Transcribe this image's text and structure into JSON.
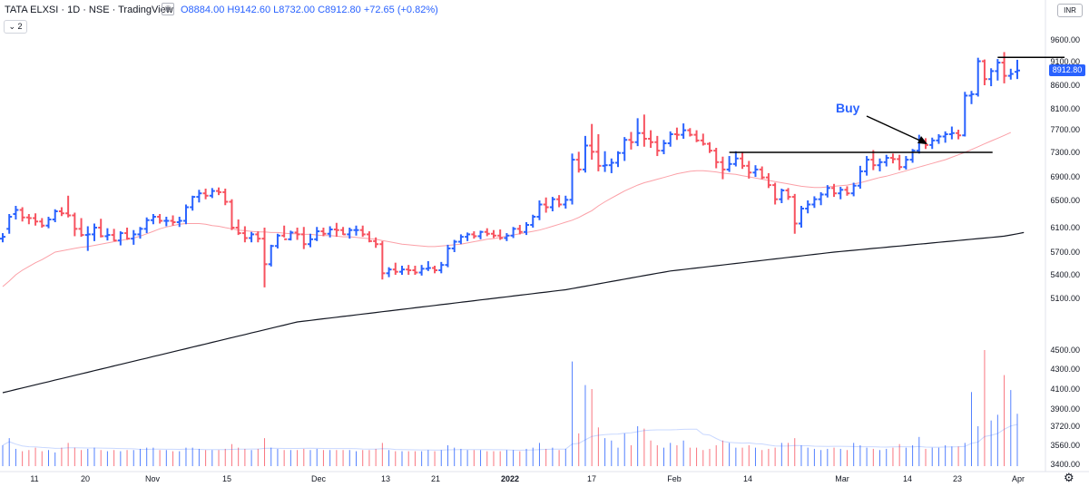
{
  "header": {
    "symbol_line": "TATA ELXSI · 1D · NSE · TradingView",
    "ohlc": "O8884.00  H9142.60  L8732.00  C8912.80  +72.65 (+0.82%)",
    "indicator_count": "2"
  },
  "currency": "INR",
  "last_price_label": "8912.80",
  "settings_icon": "gear-icon",
  "annotation": "Buy",
  "chart_data": {
    "type": "bar",
    "title": "",
    "price_axis": {
      "ticks": [
        5100,
        5400,
        5700,
        6100,
        6500,
        6900,
        7300,
        7700,
        8100,
        8600,
        9100,
        9600
      ],
      "tick_labels": [
        "5100.00",
        "5400.00",
        "5700.00",
        "6100.00",
        "6500.00",
        "6900.00",
        "7300.00",
        "7700.00",
        "8100.00",
        "8600.00",
        "9100.00",
        "9600.00"
      ]
    },
    "volume_axis": {
      "ticks": [
        3400,
        3560,
        3720,
        3900,
        4100,
        4300,
        4500
      ],
      "tick_labels": [
        "3400.00",
        "3560.00",
        "3720.00",
        "3900.00",
        "4100.00",
        "4300.00",
        "4500.00"
      ]
    },
    "x_ticks": [
      "11",
      "20",
      "Nov",
      "15",
      "Dec",
      "13",
      "21",
      "2022",
      "17",
      "Feb",
      "14",
      "Mar",
      "14",
      "23",
      "Apr"
    ],
    "colors": {
      "up": "#2962ff",
      "down": "#f7525f",
      "ma_fast": "#f7525f",
      "ma_slow": "#131722",
      "level": "#000000"
    },
    "ohlc": [
      [
        5920,
        6010,
        5860,
        5950
      ],
      [
        6080,
        6300,
        6000,
        6260
      ],
      [
        6300,
        6420,
        6220,
        6360
      ],
      [
        6360,
        6400,
        6190,
        6250
      ],
      [
        6250,
        6300,
        6150,
        6240
      ],
      [
        6240,
        6310,
        6130,
        6190
      ],
      [
        6190,
        6240,
        6100,
        6130
      ],
      [
        6130,
        6260,
        6090,
        6220
      ],
      [
        6220,
        6370,
        6180,
        6340
      ],
      [
        6340,
        6400,
        6270,
        6310
      ],
      [
        6310,
        6580,
        6250,
        6280
      ],
      [
        6280,
        6320,
        5960,
        6080
      ],
      [
        6080,
        6240,
        5950,
        5980
      ],
      [
        5980,
        6120,
        5720,
        5990
      ],
      [
        5990,
        6160,
        5880,
        6100
      ],
      [
        6100,
        6230,
        5940,
        5960
      ],
      [
        5960,
        6090,
        5890,
        5980
      ],
      [
        5980,
        6080,
        5880,
        5890
      ],
      [
        5890,
        6040,
        5810,
        6010
      ],
      [
        6010,
        6100,
        5900,
        5920
      ],
      [
        5920,
        6060,
        5820,
        5990
      ],
      [
        5990,
        6110,
        5920,
        6080
      ],
      [
        6080,
        6250,
        6010,
        6210
      ],
      [
        6210,
        6300,
        6150,
        6260
      ],
      [
        6260,
        6300,
        6160,
        6200
      ],
      [
        6200,
        6260,
        6120,
        6200
      ],
      [
        6200,
        6280,
        6130,
        6180
      ],
      [
        6180,
        6260,
        6110,
        6200
      ],
      [
        6200,
        6440,
        6150,
        6400
      ],
      [
        6400,
        6580,
        6350,
        6560
      ],
      [
        6560,
        6680,
        6470,
        6620
      ],
      [
        6620,
        6700,
        6520,
        6580
      ],
      [
        6580,
        6710,
        6540,
        6660
      ],
      [
        6660,
        6720,
        6590,
        6640
      ],
      [
        6640,
        6700,
        6430,
        6480
      ],
      [
        6480,
        6520,
        6060,
        6100
      ],
      [
        6100,
        6220,
        5980,
        6010
      ],
      [
        6010,
        6120,
        5860,
        5930
      ],
      [
        5930,
        6030,
        5860,
        5990
      ],
      [
        5990,
        6040,
        5860,
        5920
      ],
      [
        5920,
        6100,
        5240,
        5540
      ],
      [
        5540,
        5820,
        5510,
        5800
      ],
      [
        5800,
        6000,
        5760,
        5970
      ],
      [
        5970,
        6130,
        5940,
        5910
      ],
      [
        5910,
        6050,
        5890,
        6020
      ],
      [
        6020,
        6100,
        5900,
        5990
      ],
      [
        5990,
        6110,
        5750,
        5830
      ],
      [
        5830,
        6000,
        5780,
        5910
      ],
      [
        5910,
        6110,
        5880,
        6040
      ],
      [
        6040,
        6100,
        5960,
        6000
      ],
      [
        6000,
        6120,
        5940,
        6070
      ],
      [
        6070,
        6170,
        5950,
        6060
      ],
      [
        6060,
        6110,
        5980,
        5990
      ],
      [
        5990,
        6100,
        5920,
        6060
      ],
      [
        6060,
        6130,
        5970,
        6060
      ],
      [
        6060,
        6130,
        5950,
        5990
      ],
      [
        5990,
        6040,
        5860,
        5880
      ],
      [
        5880,
        5940,
        5770,
        5830
      ],
      [
        5830,
        5880,
        5340,
        5420
      ],
      [
        5420,
        5500,
        5370,
        5470
      ],
      [
        5470,
        5560,
        5400,
        5440
      ],
      [
        5440,
        5520,
        5400,
        5470
      ],
      [
        5470,
        5530,
        5400,
        5460
      ],
      [
        5460,
        5520,
        5400,
        5430
      ],
      [
        5430,
        5530,
        5390,
        5480
      ],
      [
        5480,
        5580,
        5450,
        5490
      ],
      [
        5490,
        5520,
        5420,
        5460
      ],
      [
        5460,
        5570,
        5420,
        5530
      ],
      [
        5530,
        5820,
        5500,
        5760
      ],
      [
        5760,
        5900,
        5700,
        5870
      ],
      [
        5870,
        5990,
        5830,
        5950
      ],
      [
        5950,
        6020,
        5880,
        5990
      ],
      [
        5990,
        6040,
        5920,
        5960
      ],
      [
        5960,
        6050,
        5910,
        6030
      ],
      [
        6030,
        6090,
        5960,
        6000
      ],
      [
        6000,
        6060,
        5930,
        5970
      ],
      [
        5970,
        6070,
        5900,
        5930
      ],
      [
        5930,
        6010,
        5880,
        5970
      ],
      [
        5970,
        6110,
        5930,
        6080
      ],
      [
        6080,
        6140,
        5990,
        6030
      ],
      [
        6030,
        6180,
        5980,
        6140
      ],
      [
        6140,
        6290,
        6100,
        6260
      ],
      [
        6260,
        6500,
        6210,
        6440
      ],
      [
        6440,
        6550,
        6320,
        6400
      ],
      [
        6400,
        6560,
        6340,
        6520
      ],
      [
        6520,
        6590,
        6400,
        6440
      ],
      [
        6440,
        6580,
        6380,
        6510
      ],
      [
        6510,
        7280,
        6440,
        7180
      ],
      [
        7180,
        7310,
        6970,
        7020
      ],
      [
        7020,
        7590,
        6970,
        7420
      ],
      [
        7420,
        7810,
        7180,
        7310
      ],
      [
        7310,
        7620,
        6990,
        7080
      ],
      [
        7080,
        7320,
        6980,
        7090
      ],
      [
        7090,
        7200,
        6960,
        7130
      ],
      [
        7130,
        7320,
        7060,
        7290
      ],
      [
        7290,
        7570,
        7160,
        7520
      ],
      [
        7520,
        7660,
        7350,
        7480
      ],
      [
        7480,
        7920,
        7410,
        7640
      ],
      [
        7640,
        7990,
        7400,
        7540
      ],
      [
        7540,
        7690,
        7380,
        7480
      ],
      [
        7480,
        7590,
        7240,
        7330
      ],
      [
        7330,
        7520,
        7270,
        7460
      ],
      [
        7460,
        7670,
        7400,
        7620
      ],
      [
        7620,
        7740,
        7520,
        7610
      ],
      [
        7610,
        7820,
        7540,
        7690
      ],
      [
        7690,
        7730,
        7580,
        7610
      ],
      [
        7610,
        7690,
        7480,
        7510
      ],
      [
        7510,
        7630,
        7420,
        7450
      ],
      [
        7450,
        7480,
        7290,
        7330
      ],
      [
        7330,
        7380,
        7040,
        7140
      ],
      [
        7140,
        7230,
        6860,
        7020
      ],
      [
        7020,
        7240,
        6980,
        7110
      ],
      [
        7110,
        7320,
        7070,
        7200
      ],
      [
        7200,
        7310,
        7030,
        7080
      ],
      [
        7080,
        7160,
        6870,
        6970
      ],
      [
        6970,
        7090,
        6900,
        7020
      ],
      [
        7020,
        7070,
        6860,
        6890
      ],
      [
        6890,
        6960,
        6710,
        6760
      ],
      [
        6760,
        6800,
        6440,
        6520
      ],
      [
        6520,
        6700,
        6460,
        6670
      ],
      [
        6670,
        6710,
        6510,
        6560
      ],
      [
        6560,
        6610,
        6000,
        6160
      ],
      [
        6160,
        6420,
        6100,
        6380
      ],
      [
        6380,
        6500,
        6310,
        6440
      ],
      [
        6440,
        6570,
        6390,
        6520
      ],
      [
        6520,
        6640,
        6430,
        6600
      ],
      [
        6600,
        6760,
        6550,
        6710
      ],
      [
        6710,
        6780,
        6560,
        6620
      ],
      [
        6620,
        6730,
        6520,
        6680
      ],
      [
        6680,
        6740,
        6580,
        6620
      ],
      [
        6620,
        6800,
        6570,
        6750
      ],
      [
        6750,
        7080,
        6700,
        6990
      ],
      [
        6990,
        7240,
        6920,
        7180
      ],
      [
        7180,
        7340,
        7010,
        7090
      ],
      [
        7090,
        7200,
        6990,
        7140
      ],
      [
        7140,
        7260,
        7070,
        7210
      ],
      [
        7210,
        7280,
        7120,
        7190
      ],
      [
        7190,
        7260,
        7010,
        7060
      ],
      [
        7060,
        7240,
        7020,
        7180
      ],
      [
        7180,
        7360,
        7130,
        7330
      ],
      [
        7330,
        7610,
        7280,
        7480
      ],
      [
        7480,
        7550,
        7360,
        7430
      ],
      [
        7430,
        7560,
        7360,
        7510
      ],
      [
        7510,
        7620,
        7450,
        7580
      ],
      [
        7580,
        7670,
        7470,
        7620
      ],
      [
        7620,
        7760,
        7530,
        7640
      ],
      [
        7640,
        7700,
        7530,
        7600
      ],
      [
        7600,
        8460,
        7580,
        8380
      ],
      [
        8380,
        8480,
        8200,
        8410
      ],
      [
        8410,
        9190,
        8360,
        9110
      ],
      [
        9110,
        9150,
        8600,
        8730
      ],
      [
        8730,
        8960,
        8580,
        8900
      ],
      [
        8900,
        9160,
        8700,
        9080
      ],
      [
        9080,
        9320,
        8640,
        8800
      ],
      [
        8800,
        8950,
        8720,
        8840
      ],
      [
        8884,
        9142.6,
        8732,
        8912.8
      ]
    ],
    "volume": [
      3560,
      3620,
      3530,
      3510,
      3520,
      3540,
      3510,
      3520,
      3500,
      3540,
      3580,
      3540,
      3520,
      3530,
      3540,
      3520,
      3510,
      3520,
      3510,
      3520,
      3520,
      3530,
      3540,
      3540,
      3520,
      3520,
      3510,
      3510,
      3540,
      3540,
      3530,
      3520,
      3520,
      3520,
      3530,
      3570,
      3540,
      3530,
      3520,
      3530,
      3620,
      3540,
      3530,
      3520,
      3520,
      3520,
      3530,
      3520,
      3530,
      3520,
      3520,
      3520,
      3520,
      3520,
      3510,
      3520,
      3520,
      3530,
      3580,
      3520,
      3510,
      3510,
      3510,
      3510,
      3510,
      3520,
      3510,
      3520,
      3560,
      3540,
      3530,
      3520,
      3520,
      3520,
      3510,
      3510,
      3510,
      3520,
      3520,
      3510,
      3530,
      3540,
      3580,
      3530,
      3540,
      3520,
      3530,
      4380,
      3660,
      4140,
      4100,
      3710,
      3620,
      3600,
      3540,
      3660,
      3560,
      3720,
      3700,
      3600,
      3560,
      3540,
      3580,
      3560,
      3600,
      3540,
      3540,
      3520,
      3530,
      3560,
      3600,
      3580,
      3540,
      3540,
      3560,
      3540,
      3520,
      3530,
      3540,
      3580,
      3580,
      3620,
      3560,
      3540,
      3530,
      3520,
      3530,
      3540,
      3530,
      3520,
      3580,
      3560,
      3540,
      3530,
      3520,
      3530,
      3540,
      3570,
      3540,
      3560,
      3630,
      3530,
      3540,
      3540,
      3560,
      3550,
      3550,
      3580,
      4070,
      3720,
      4500,
      3780,
      3840,
      4240,
      4090,
      3850
    ],
    "ma_fast": [
      5250,
      5320,
      5400,
      5460,
      5510,
      5560,
      5600,
      5650,
      5700,
      5720,
      5740,
      5760,
      5780,
      5790,
      5810,
      5830,
      5850,
      5870,
      5890,
      5910,
      5930,
      5960,
      6000,
      6040,
      6080,
      6110,
      6130,
      6150,
      6160,
      6160,
      6160,
      6150,
      6130,
      6120,
      6100,
      6080,
      6060,
      6050,
      6040,
      6030,
      6030,
      6020,
      6020,
      6010,
      6000,
      6000,
      5990,
      5990,
      5980,
      5970,
      5970,
      5960,
      5950,
      5950,
      5940,
      5930,
      5920,
      5910,
      5890,
      5870,
      5850,
      5830,
      5820,
      5810,
      5800,
      5790,
      5790,
      5800,
      5810,
      5820,
      5830,
      5850,
      5870,
      5890,
      5910,
      5920,
      5940,
      5960,
      5980,
      6000,
      6020,
      6040,
      6060,
      6090,
      6120,
      6150,
      6180,
      6210,
      6250,
      6300,
      6350,
      6420,
      6480,
      6540,
      6600,
      6660,
      6710,
      6760,
      6800,
      6830,
      6860,
      6890,
      6920,
      6950,
      6970,
      6990,
      7000,
      7000,
      6990,
      6980,
      6960,
      6950,
      6940,
      6920,
      6900,
      6880,
      6860,
      6840,
      6820,
      6800,
      6780,
      6760,
      6740,
      6730,
      6720,
      6720,
      6730,
      6740,
      6750,
      6760,
      6780,
      6800,
      6830,
      6860,
      6890,
      6910,
      6940,
      6970,
      7000,
      7030,
      7060,
      7090,
      7120,
      7150,
      7180,
      7220,
      7260,
      7300,
      7350,
      7400,
      7450,
      7500,
      7550,
      7600,
      7650
    ],
    "ma_slow": [
      3900,
      3920,
      3940,
      3960,
      3980,
      4000,
      4020,
      4040,
      4060,
      4080,
      4100,
      4120,
      4140,
      4160,
      4180,
      4200,
      4220,
      4240,
      4260,
      4280,
      4300,
      4320,
      4340,
      4360,
      4380,
      4400,
      4420,
      4440,
      4460,
      4480,
      4500,
      4520,
      4540,
      4560,
      4580,
      4600,
      4620,
      4640,
      4660,
      4680,
      4700,
      4720,
      4740,
      4760,
      4780,
      4800,
      4810,
      4820,
      4830,
      4840,
      4850,
      4860,
      4870,
      4880,
      4890,
      4900,
      4910,
      4920,
      4930,
      4940,
      4950,
      4960,
      4970,
      4980,
      4990,
      5000,
      5010,
      5020,
      5030,
      5040,
      5050,
      5060,
      5070,
      5080,
      5090,
      5100,
      5110,
      5120,
      5130,
      5140,
      5150,
      5160,
      5170,
      5180,
      5190,
      5200,
      5210,
      5225,
      5240,
      5255,
      5270,
      5285,
      5300,
      5315,
      5330,
      5345,
      5360,
      5375,
      5390,
      5405,
      5420,
      5435,
      5450,
      5460,
      5470,
      5480,
      5490,
      5500,
      5510,
      5520,
      5530,
      5540,
      5550,
      5560,
      5570,
      5580,
      5590,
      5600,
      5610,
      5620,
      5630,
      5640,
      5650,
      5660,
      5670,
      5680,
      5690,
      5700,
      5710,
      5720,
      5730,
      5740,
      5750,
      5760,
      5770,
      5780,
      5790,
      5800,
      5810,
      5820,
      5830,
      5840,
      5850,
      5860,
      5870,
      5880,
      5890,
      5900,
      5910,
      5920,
      5930,
      5940,
      5950,
      5960,
      5980,
      6000,
      6020
    ],
    "levels": [
      {
        "price": 7300,
        "from_index": 111,
        "to_index": 149
      },
      {
        "price": 9200,
        "from_index": 152,
        "to_index": 160
      }
    ]
  }
}
